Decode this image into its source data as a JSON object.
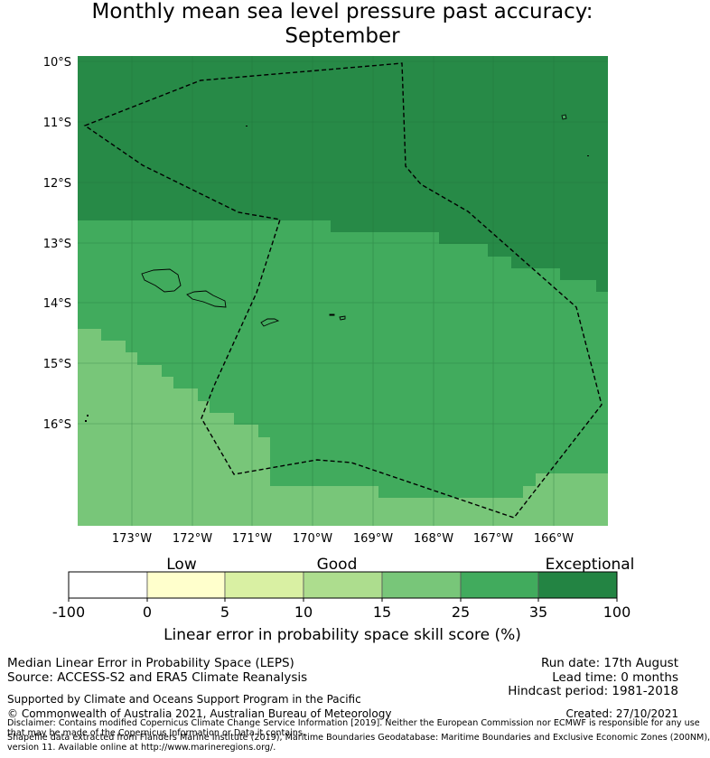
{
  "title": {
    "line1": "Monthly mean sea level pressure past accuracy:",
    "line2": "September"
  },
  "map": {
    "lat_labels": [
      "10°S",
      "11°S",
      "12°S",
      "13°S",
      "14°S",
      "15°S",
      "16°S"
    ],
    "lon_labels": [
      "173°W",
      "172°W",
      "171°W",
      "170°W",
      "169°W",
      "168°W",
      "167°W",
      "166°W"
    ],
    "region_colors": {
      "exceptional": "#278a47",
      "very_good": "#41ab5d",
      "good_mid": "#78c679",
      "background": "#ffffff"
    },
    "islands": [
      "Savai'i",
      "Upolu",
      "Tutuila",
      "Manu'a",
      "Swains Island",
      "Nukunonu",
      "Atafu"
    ],
    "boundary": "dashed EEZ boundary"
  },
  "colorbar": {
    "categories": [
      {
        "name": "Low"
      },
      {
        "name": "Good"
      },
      {
        "name": "Exceptional"
      }
    ],
    "ticks": [
      "-100",
      "0",
      "5",
      "10",
      "15",
      "25",
      "35",
      "100"
    ],
    "colors": [
      "#ffffff",
      "#ffffcc",
      "#d9f0a3",
      "#addd8e",
      "#78c679",
      "#41ab5d",
      "#238443"
    ],
    "label": "Linear error in probability space skill score (%)"
  },
  "footer": {
    "left_line1": "Median Linear Error in Probability Space (LEPS)",
    "left_line2": "Source: ACCESS-S2 and ERA5 Climate Reanalysis",
    "run_date": "Run date: 17th August",
    "lead_time": "Lead time: 0 months",
    "hindcast": "Hindcast period: 1981-2018",
    "supported": "Supported by Climate and Oceans Support Program in the Pacific",
    "copyright": "© Commonwealth of Australia 2021, Australian Bureau of Meteorology",
    "created": "Created: 27/10/2021",
    "disclaimer1": "Disclaimer: Contains modified Copernicus Climate Change Service Information [2019]. Neither the European Commission nor ECMWF is responsible for any use",
    "disclaimer2": "that may be made of the Copernicus Information or Data it contains.",
    "shapefile1": "Shapefile data extracted from Flanders Marine Institute (2019), Maritime Boundaries Geodatabase: Maritime Boundaries and Exclusive Economic Zones (200NM),",
    "shapefile2": "version 11. Available online at http://www.marineregions.org/."
  }
}
